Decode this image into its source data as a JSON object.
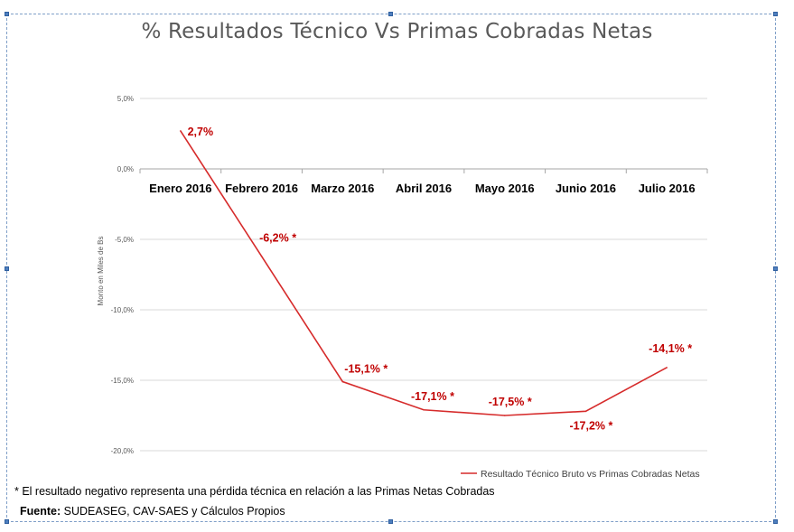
{
  "chart_data": {
    "type": "line",
    "title": "% Resultados Técnico Vs Primas Cobradas Netas",
    "ylabel": "Monto en Miles de Bs",
    "categories": [
      "Enero 2016",
      "Febrero 2016",
      "Marzo 2016",
      "Abril 2016",
      "Mayo 2016",
      "Junio 2016",
      "Julio 2016"
    ],
    "series": [
      {
        "name": "Resultado Técnico Bruto vs Primas Cobradas Netas",
        "color": "#d62b2b",
        "values": [
          2.7,
          -6.2,
          -15.1,
          -17.1,
          -17.5,
          -17.2,
          -14.1
        ],
        "labels": [
          "2,7%",
          "-6,2% *",
          "-15,1% *",
          "-17,1% *",
          "-17,5% *",
          "-17,2% *",
          "-14,1% *"
        ]
      }
    ],
    "yticks": [
      5,
      0,
      -5,
      -10,
      -15,
      -20
    ],
    "ytick_labels": [
      "5,0%",
      "0,0%",
      "-5,0%",
      "-10,0%",
      "-15,0%",
      "-20,0%"
    ],
    "ylim": [
      -20,
      5
    ],
    "grid": true,
    "legend": "bottom-right"
  },
  "footnote": "* El resultado negativo representa una pérdida técnica en relación a las Primas Netas Cobradas",
  "source_label": "Fuente:",
  "source_text": " SUDEASEG, CAV-SAES y Cálculos Propios"
}
